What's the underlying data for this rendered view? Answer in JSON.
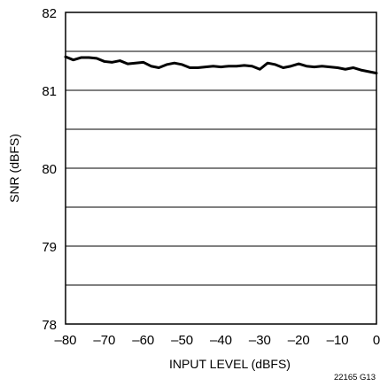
{
  "chart_data": {
    "type": "line",
    "title": "",
    "xlabel": "INPUT LEVEL (dBFS)",
    "ylabel": "SNR (dBFS)",
    "xlim": [
      -80,
      0
    ],
    "ylim": [
      78,
      82
    ],
    "x_ticks": [
      -80,
      -70,
      -60,
      -50,
      -40,
      -30,
      -20,
      -10,
      0
    ],
    "x_tick_labels": [
      "–80",
      "–70",
      "–60",
      "–50",
      "–40",
      "–30",
      "–20",
      "–10",
      "0"
    ],
    "y_ticks": [
      78,
      79,
      80,
      81,
      82
    ],
    "y_tick_labels": [
      "78",
      "79",
      "80",
      "81",
      "82"
    ],
    "y_gridlines": [
      78.5,
      79,
      79.5,
      80,
      80.5,
      81,
      81.5
    ],
    "grid": "horizontal",
    "legend": "none",
    "line_color": "#000000",
    "series": [
      {
        "x": [
          -80,
          -78,
          -76,
          -74,
          -72,
          -70,
          -68,
          -66,
          -64,
          -62,
          -60,
          -58,
          -56,
          -54,
          -52,
          -50,
          -48,
          -46,
          -44,
          -42,
          -40,
          -38,
          -36,
          -34,
          -32,
          -30,
          -28,
          -26,
          -24,
          -22,
          -20,
          -18,
          -16,
          -14,
          -12,
          -10,
          -8,
          -6,
          -4,
          -2,
          0
        ],
        "y": [
          81.43,
          81.39,
          81.42,
          81.42,
          81.41,
          81.37,
          81.36,
          81.38,
          81.34,
          81.35,
          81.36,
          81.31,
          81.29,
          81.33,
          81.35,
          81.33,
          81.29,
          81.29,
          81.3,
          81.31,
          81.3,
          81.31,
          81.31,
          81.32,
          81.31,
          81.27,
          81.35,
          81.33,
          81.29,
          81.31,
          81.34,
          81.31,
          81.3,
          81.31,
          81.3,
          81.29,
          81.27,
          81.29,
          81.26,
          81.24,
          81.22
        ]
      }
    ]
  },
  "figure_code": "22165 G13"
}
